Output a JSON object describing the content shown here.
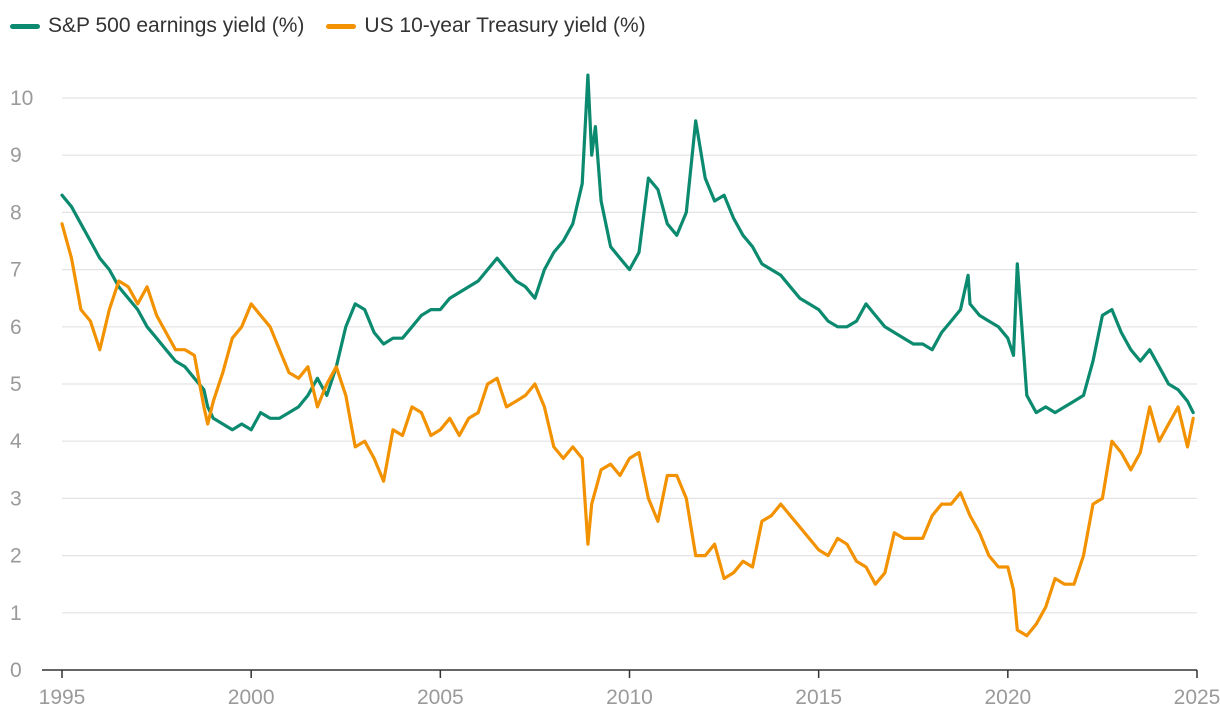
{
  "chart_data": {
    "type": "line",
    "title": "",
    "xlabel": "",
    "ylabel": "",
    "xlim": [
      1995,
      2025
    ],
    "ylim": [
      0,
      10.5
    ],
    "x_ticks": [
      "1995",
      "2000",
      "2005",
      "2010",
      "2015",
      "2020",
      "2025"
    ],
    "y_ticks": [
      "0",
      "1",
      "2",
      "3",
      "4",
      "5",
      "6",
      "7",
      "8",
      "9",
      "10"
    ],
    "grid": "horizontal",
    "legend_position": "top-left",
    "series": [
      {
        "name": "S&P 500 earnings yield (%)",
        "color": "#0b8a6f",
        "x": [
          1995.0,
          1995.25,
          1995.5,
          1995.75,
          1996.0,
          1996.25,
          1996.5,
          1996.75,
          1997.0,
          1997.25,
          1997.5,
          1997.75,
          1998.0,
          1998.25,
          1998.5,
          1998.75,
          1998.85,
          1999.0,
          1999.25,
          1999.5,
          1999.75,
          2000.0,
          2000.25,
          2000.5,
          2000.75,
          2001.0,
          2001.25,
          2001.5,
          2001.75,
          2002.0,
          2002.25,
          2002.5,
          2002.75,
          2003.0,
          2003.25,
          2003.5,
          2003.75,
          2004.0,
          2004.25,
          2004.5,
          2004.75,
          2005.0,
          2005.25,
          2005.5,
          2005.75,
          2006.0,
          2006.25,
          2006.5,
          2006.75,
          2007.0,
          2007.25,
          2007.5,
          2007.75,
          2008.0,
          2008.25,
          2008.5,
          2008.75,
          2008.9,
          2009.0,
          2009.1,
          2009.25,
          2009.5,
          2009.75,
          2010.0,
          2010.25,
          2010.5,
          2010.75,
          2011.0,
          2011.25,
          2011.5,
          2011.75,
          2011.85,
          2012.0,
          2012.25,
          2012.5,
          2012.75,
          2013.0,
          2013.25,
          2013.5,
          2013.75,
          2014.0,
          2014.25,
          2014.5,
          2014.75,
          2015.0,
          2015.25,
          2015.5,
          2015.75,
          2016.0,
          2016.25,
          2016.5,
          2016.75,
          2017.0,
          2017.25,
          2017.5,
          2017.75,
          2018.0,
          2018.25,
          2018.5,
          2018.75,
          2018.95,
          2019.0,
          2019.25,
          2019.5,
          2019.75,
          2020.0,
          2020.15,
          2020.25,
          2020.5,
          2020.75,
          2021.0,
          2021.25,
          2021.5,
          2021.75,
          2022.0,
          2022.25,
          2022.5,
          2022.75,
          2023.0,
          2023.25,
          2023.5,
          2023.75,
          2024.0,
          2024.25,
          2024.5,
          2024.75,
          2024.9
        ],
        "values": [
          8.3,
          8.1,
          7.8,
          7.5,
          7.2,
          7.0,
          6.7,
          6.5,
          6.3,
          6.0,
          5.8,
          5.6,
          5.4,
          5.3,
          5.1,
          4.9,
          4.6,
          4.4,
          4.3,
          4.2,
          4.3,
          4.2,
          4.5,
          4.4,
          4.4,
          4.5,
          4.6,
          4.8,
          5.1,
          4.8,
          5.3,
          6.0,
          6.4,
          6.3,
          5.9,
          5.7,
          5.8,
          5.8,
          6.0,
          6.2,
          6.3,
          6.3,
          6.5,
          6.6,
          6.7,
          6.8,
          7.0,
          7.2,
          7.0,
          6.8,
          6.7,
          6.5,
          7.0,
          7.3,
          7.5,
          7.8,
          8.5,
          10.4,
          9.0,
          9.5,
          8.2,
          7.4,
          7.2,
          7.0,
          7.3,
          8.6,
          8.4,
          7.8,
          7.6,
          8.0,
          9.6,
          9.2,
          8.6,
          8.2,
          8.3,
          7.9,
          7.6,
          7.4,
          7.1,
          7.0,
          6.9,
          6.7,
          6.5,
          6.4,
          6.3,
          6.1,
          6.0,
          6.0,
          6.1,
          6.4,
          6.2,
          6.0,
          5.9,
          5.8,
          5.7,
          5.7,
          5.6,
          5.9,
          6.1,
          6.3,
          6.9,
          6.4,
          6.2,
          6.1,
          6.0,
          5.8,
          5.5,
          7.1,
          4.8,
          4.5,
          4.6,
          4.5,
          4.6,
          4.7,
          4.8,
          5.4,
          6.2,
          6.3,
          5.9,
          5.6,
          5.4,
          5.6,
          5.3,
          5.0,
          4.9,
          4.7,
          4.5
        ]
      },
      {
        "name": "US 10-year Treasury yield (%)",
        "color": "#f39200",
        "x": [
          1995.0,
          1995.25,
          1995.5,
          1995.75,
          1996.0,
          1996.25,
          1996.5,
          1996.75,
          1997.0,
          1997.25,
          1997.5,
          1997.75,
          1998.0,
          1998.25,
          1998.5,
          1998.75,
          1998.85,
          1999.0,
          1999.25,
          1999.5,
          1999.75,
          2000.0,
          2000.25,
          2000.5,
          2000.75,
          2001.0,
          2001.25,
          2001.5,
          2001.75,
          2002.0,
          2002.25,
          2002.5,
          2002.75,
          2003.0,
          2003.25,
          2003.5,
          2003.75,
          2004.0,
          2004.25,
          2004.5,
          2004.75,
          2005.0,
          2005.25,
          2005.5,
          2005.75,
          2006.0,
          2006.25,
          2006.5,
          2006.75,
          2007.0,
          2007.25,
          2007.5,
          2007.75,
          2008.0,
          2008.25,
          2008.5,
          2008.75,
          2008.9,
          2009.0,
          2009.25,
          2009.5,
          2009.75,
          2010.0,
          2010.25,
          2010.5,
          2010.75,
          2011.0,
          2011.25,
          2011.5,
          2011.75,
          2012.0,
          2012.25,
          2012.5,
          2012.75,
          2013.0,
          2013.25,
          2013.5,
          2013.75,
          2014.0,
          2014.25,
          2014.5,
          2014.75,
          2015.0,
          2015.25,
          2015.5,
          2015.75,
          2016.0,
          2016.25,
          2016.5,
          2016.75,
          2017.0,
          2017.25,
          2017.5,
          2017.75,
          2018.0,
          2018.25,
          2018.5,
          2018.75,
          2019.0,
          2019.25,
          2019.5,
          2019.75,
          2020.0,
          2020.15,
          2020.25,
          2020.5,
          2020.75,
          2021.0,
          2021.25,
          2021.5,
          2021.75,
          2022.0,
          2022.25,
          2022.5,
          2022.75,
          2023.0,
          2023.25,
          2023.5,
          2023.75,
          2024.0,
          2024.25,
          2024.5,
          2024.75,
          2024.9
        ],
        "values": [
          7.8,
          7.2,
          6.3,
          6.1,
          5.6,
          6.3,
          6.8,
          6.7,
          6.4,
          6.7,
          6.2,
          5.9,
          5.6,
          5.6,
          5.5,
          4.6,
          4.3,
          4.7,
          5.2,
          5.8,
          6.0,
          6.4,
          6.2,
          6.0,
          5.6,
          5.2,
          5.1,
          5.3,
          4.6,
          5.0,
          5.3,
          4.8,
          3.9,
          4.0,
          3.7,
          3.3,
          4.2,
          4.1,
          4.6,
          4.5,
          4.1,
          4.2,
          4.4,
          4.1,
          4.4,
          4.5,
          5.0,
          5.1,
          4.6,
          4.7,
          4.8,
          5.0,
          4.6,
          3.9,
          3.7,
          3.9,
          3.7,
          2.2,
          2.9,
          3.5,
          3.6,
          3.4,
          3.7,
          3.8,
          3.0,
          2.6,
          3.4,
          3.4,
          3.0,
          2.0,
          2.0,
          2.2,
          1.6,
          1.7,
          1.9,
          1.8,
          2.6,
          2.7,
          2.9,
          2.7,
          2.5,
          2.3,
          2.1,
          2.0,
          2.3,
          2.2,
          1.9,
          1.8,
          1.5,
          1.7,
          2.4,
          2.3,
          2.3,
          2.3,
          2.7,
          2.9,
          2.9,
          3.1,
          2.7,
          2.4,
          2.0,
          1.8,
          1.8,
          1.4,
          0.7,
          0.6,
          0.8,
          1.1,
          1.6,
          1.5,
          1.5,
          2.0,
          2.9,
          3.0,
          4.0,
          3.8,
          3.5,
          3.8,
          4.6,
          4.0,
          4.3,
          4.6,
          3.9,
          4.4
        ]
      }
    ]
  }
}
